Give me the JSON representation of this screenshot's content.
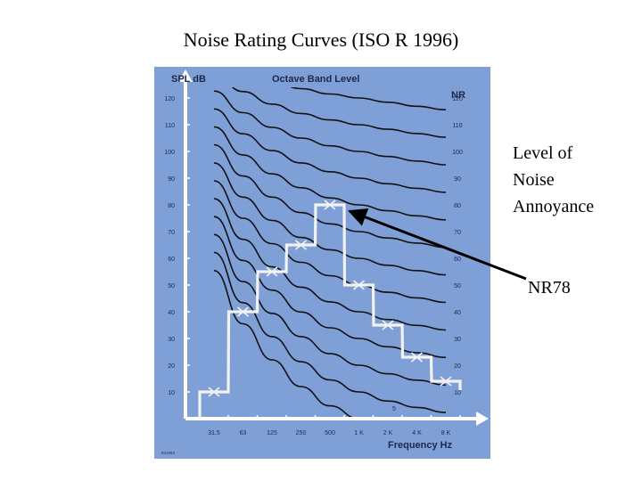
{
  "slide": {
    "title": "Noise Rating Curves (ISO R 1996)",
    "note_level": [
      "Level of",
      "Noise",
      "Annoyance"
    ],
    "note_nr": "NR78"
  },
  "colors": {
    "panel": "#7fa0d6",
    "curve": "#111111",
    "spectrum": "#f2f2f2",
    "arrow": "#000000"
  },
  "chart_data": {
    "type": "line",
    "header_left": "SPL dB",
    "header_center": "Octave Band Level",
    "nr_label": "NR",
    "xlabel": "Frequency Hz",
    "x_ticks": [
      "31.5",
      "63",
      "125",
      "250",
      "500",
      "1 K",
      "2 K",
      "4 K",
      "8 K"
    ],
    "y_ticks": [
      "10",
      "20",
      "30",
      "40",
      "50",
      "60",
      "70",
      "80",
      "90",
      "100",
      "110",
      "120"
    ],
    "ylim": [
      0,
      120
    ],
    "curve_label_5": "5",
    "nr_curve_labels": [
      "10",
      "20",
      "30",
      "40",
      "50",
      "60",
      "70",
      "80",
      "90",
      "100",
      "110",
      "120"
    ],
    "nr_curves": [
      {
        "nr": 5,
        "values": [
          55.4,
          35.5,
          22.0,
          12.0,
          4.8,
          0,
          -3.5,
          -6.1,
          -8.0
        ]
      },
      {
        "nr": 10,
        "values": [
          62.2,
          43.4,
          30.7,
          21.3,
          14.5,
          10,
          6.6,
          4.2,
          2.3
        ]
      },
      {
        "nr": 15,
        "values": [
          68.9,
          51.3,
          39.4,
          30.7,
          24.3,
          20,
          16.8,
          14.4,
          12.6
        ]
      },
      {
        "nr": 20,
        "values": [
          75.6,
          59.2,
          48.1,
          39.9,
          34.0,
          30,
          26.9,
          24.7,
          22.9
        ]
      },
      {
        "nr": 25,
        "values": [
          82.3,
          67.1,
          56.8,
          49.2,
          43.7,
          40,
          37.1,
          34.9,
          33.2
        ]
      },
      {
        "nr": 30,
        "values": [
          89.0,
          75.0,
          65.5,
          58.5,
          53.5,
          50,
          47.3,
          45.2,
          43.5
        ]
      },
      {
        "nr": 35,
        "values": [
          95.7,
          82.9,
          74.2,
          67.8,
          63.2,
          60,
          57.4,
          55.4,
          53.8
        ]
      },
      {
        "nr": 40,
        "values": [
          102.5,
          90.8,
          82.9,
          77.1,
          72.9,
          70,
          67.6,
          65.7,
          64.1
        ]
      },
      {
        "nr": 45,
        "values": [
          109.2,
          98.7,
          91.6,
          86.4,
          82.6,
          80,
          77.8,
          75.9,
          74.4
        ]
      },
      {
        "nr": 50,
        "values": [
          115.9,
          106.6,
          100.3,
          95.7,
          92.4,
          90,
          87.9,
          86.2,
          84.7
        ]
      },
      {
        "nr": 55,
        "values": [
          122.6,
          114.5,
          109.0,
          105.0,
          102.1,
          100,
          98.1,
          96.4,
          95.0
        ]
      },
      {
        "nr": 60,
        "values": [
          129.3,
          122.4,
          117.7,
          114.2,
          111.8,
          110,
          108.3,
          106.7,
          105.3
        ]
      },
      {
        "nr": 65,
        "values": [
          136.0,
          130.3,
          126.4,
          123.5,
          121.5,
          120,
          118.4,
          116.9,
          115.6
        ]
      },
      {
        "nr": 70,
        "values": [
          142.8,
          138.2,
          135.1,
          132.8,
          131.3,
          130,
          128.6,
          127.2,
          125.9
        ]
      }
    ],
    "spectrum": [
      10,
      40,
      55,
      65,
      80,
      50,
      35,
      23,
      14
    ],
    "annotation": "NR78",
    "footnote": "831863"
  }
}
